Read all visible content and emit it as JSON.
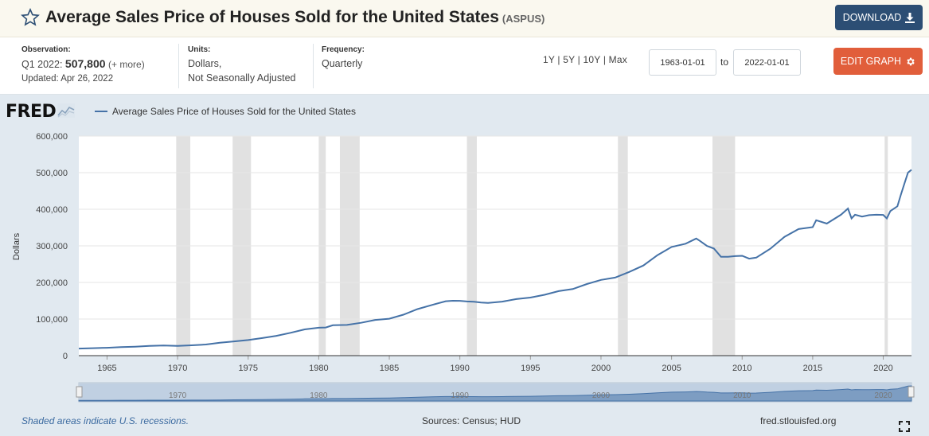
{
  "header": {
    "title": "Average Sales Price of Houses Sold for the United States",
    "series_code": "(ASPUS)",
    "download_label": "DOWNLOAD"
  },
  "info": {
    "observation_label": "Observation:",
    "observation_period": "Q1 2022:",
    "observation_value": "507,800",
    "observation_more": "(+ more)",
    "updated": "Updated: Apr 26, 2022",
    "units_label": "Units:",
    "units_line1": "Dollars,",
    "units_line2": "Not Seasonally Adjusted",
    "frequency_label": "Frequency:",
    "frequency_value": "Quarterly"
  },
  "controls": {
    "ranges": [
      "1Y",
      "5Y",
      "10Y",
      "Max"
    ],
    "start_date": "1963-01-01",
    "to_label": "to",
    "end_date": "2022-01-01",
    "edit_label": "EDIT GRAPH"
  },
  "chart_data": {
    "type": "line",
    "logo": "FRED",
    "legend": "Average Sales Price of Houses Sold for the United States",
    "ylabel": "Dollars",
    "ylim": [
      0,
      600000
    ],
    "xlim": [
      1963.0,
      2022.0
    ],
    "y_ticks": [
      "0",
      "100,000",
      "200,000",
      "300,000",
      "400,000",
      "500,000",
      "600,000"
    ],
    "x_ticks": [
      "1965",
      "1970",
      "1975",
      "1980",
      "1985",
      "1990",
      "1995",
      "2000",
      "2005",
      "2010",
      "2015",
      "2020"
    ],
    "navigator_ticks": [
      "1970",
      "1980",
      "1990",
      "2000",
      "2010",
      "2020"
    ],
    "series_color": "#4572a7",
    "recessions": [
      [
        1969.9,
        1970.9
      ],
      [
        1973.9,
        1975.2
      ],
      [
        1980.0,
        1980.5
      ],
      [
        1981.5,
        1982.9
      ],
      [
        1990.5,
        1991.2
      ],
      [
        2001.2,
        2001.9
      ],
      [
        2007.9,
        2009.5
      ],
      [
        2020.1,
        2020.3
      ]
    ],
    "x": [
      1963.0,
      1964.0,
      1965.0,
      1966.0,
      1967.0,
      1968.0,
      1969.0,
      1970.0,
      1971.0,
      1972.0,
      1973.0,
      1974.0,
      1975.0,
      1976.0,
      1977.0,
      1978.0,
      1979.0,
      1980.0,
      1980.5,
      1981.0,
      1982.0,
      1983.0,
      1984.0,
      1985.0,
      1986.0,
      1987.0,
      1988.0,
      1989.0,
      1989.5,
      1990.0,
      1990.5,
      1991.0,
      1991.5,
      1992.0,
      1993.0,
      1994.0,
      1995.0,
      1996.0,
      1997.0,
      1998.0,
      1999.0,
      2000.0,
      2001.0,
      2002.0,
      2003.0,
      2004.0,
      2005.0,
      2006.0,
      2006.75,
      2007.0,
      2007.5,
      2008.0,
      2008.5,
      2009.0,
      2009.5,
      2010.0,
      2010.5,
      2011.0,
      2012.0,
      2013.0,
      2014.0,
      2015.0,
      2015.25,
      2016.0,
      2017.0,
      2017.5,
      2017.75,
      2018.0,
      2018.5,
      2019.0,
      2019.5,
      2020.0,
      2020.25,
      2020.5,
      2021.0,
      2021.25,
      2021.5,
      2021.75,
      2022.0
    ],
    "values": [
      19300,
      20500,
      21500,
      23300,
      24600,
      26600,
      27900,
      26600,
      28300,
      30500,
      35500,
      38900,
      42600,
      48000,
      54200,
      62500,
      71800,
      76400,
      77000,
      83000,
      83900,
      89800,
      97600,
      100800,
      111900,
      127200,
      138300,
      148800,
      150000,
      149800,
      148000,
      147200,
      145000,
      144100,
      147700,
      154500,
      158700,
      166400,
      176200,
      181900,
      195600,
      207000,
      213200,
      228700,
      246300,
      274500,
      297000,
      305900,
      320000,
      313600,
      300000,
      292600,
      270000,
      270100,
      272000,
      272900,
      265000,
      267900,
      292200,
      324500,
      345800,
      351000,
      370000,
      360900,
      384900,
      402000,
      375000,
      385000,
      380000,
      383900,
      385000,
      384600,
      375000,
      395000,
      408100,
      440000,
      470000,
      500000,
      507800
    ]
  },
  "footer": {
    "recession_note": "Shaded areas indicate U.S. recessions.",
    "sources": "Sources: Census; HUD",
    "site": "fred.stlouisfed.org"
  }
}
